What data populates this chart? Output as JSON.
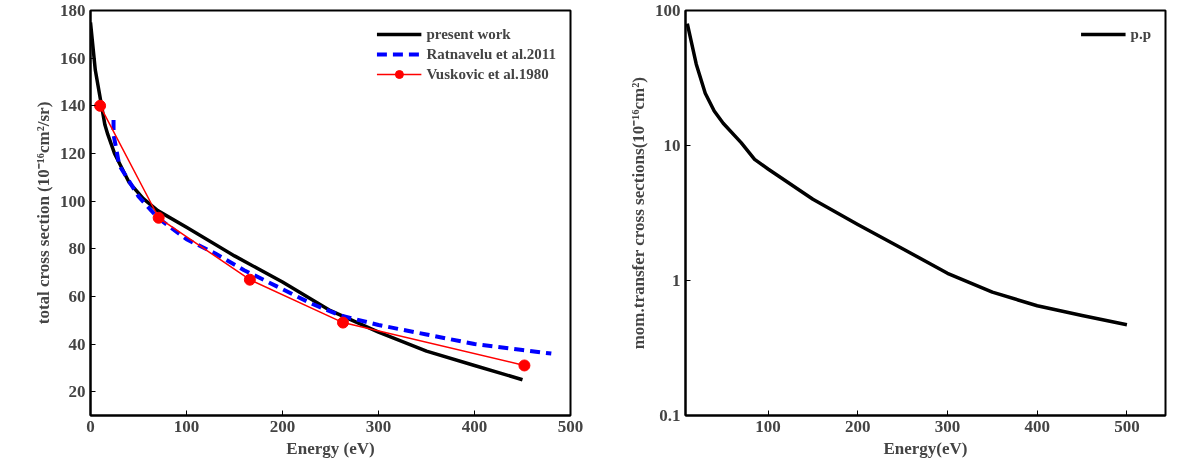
{
  "chart_data": [
    {
      "type": "line",
      "xlabel": "Energy (eV)",
      "ylabel": "total cross section (10⁻¹⁶cm²/sr)",
      "xlim": [
        0,
        500
      ],
      "xticks": [
        0,
        100,
        200,
        300,
        400,
        500
      ],
      "ylim": [
        10,
        180
      ],
      "yticks": [
        20,
        40,
        60,
        80,
        100,
        120,
        140,
        160,
        180
      ],
      "grid": false,
      "legend": "top right",
      "series": [
        {
          "name": "present work",
          "color": "#000000",
          "line_style": "solid",
          "marker": "none",
          "x": [
            0,
            5,
            15,
            18,
            25,
            40,
            55,
            70,
            100,
            150,
            200,
            250,
            300,
            350,
            400,
            450
          ],
          "values": [
            175,
            155,
            132,
            128,
            120,
            108,
            101,
            96,
            89,
            77,
            66,
            54,
            45,
            37,
            31,
            25
          ]
        },
        {
          "name": "Ratnavelu et al.2011",
          "color": "#0000ff",
          "line_style": "dashed",
          "marker": "none",
          "x": [
            24,
            24,
            30,
            50,
            70,
            100,
            130,
            160,
            200,
            230,
            260,
            300,
            350,
            400,
            450,
            480
          ],
          "values": [
            134,
            128,
            115,
            102,
            93,
            84,
            78,
            71,
            63,
            57,
            52,
            48,
            44,
            40,
            37.5,
            36
          ]
        },
        {
          "name": "Vuskovic et al.1980",
          "color": "#ff0000",
          "line_style": "solid",
          "marker": "circle",
          "x": [
            10,
            71,
            166,
            263,
            452
          ],
          "values": [
            140,
            93,
            67,
            49,
            31
          ]
        }
      ]
    },
    {
      "type": "line",
      "xlabel": "Energy(eV)",
      "ylabel": "mom.transfer cross sections(10⁻¹⁶cm²)",
      "log": "y",
      "xlim": [
        8,
        543
      ],
      "xticks": [
        100,
        200,
        300,
        400,
        500
      ],
      "ylim": [
        0.1,
        100
      ],
      "yticks": [
        0.1,
        1,
        10,
        100
      ],
      "grid": false,
      "legend": "top right",
      "series": [
        {
          "name": "p.p",
          "color": "#000000",
          "line_style": "solid",
          "marker": "none",
          "x": [
            10,
            20,
            30,
            40,
            50,
            70,
            85,
            100,
            150,
            200,
            250,
            300,
            350,
            400,
            450,
            500
          ],
          "values": [
            80,
            40,
            24.4,
            18,
            14.6,
            10.5,
            7.9,
            6.7,
            4.0,
            2.6,
            1.72,
            1.13,
            0.82,
            0.65,
            0.55,
            0.47
          ]
        }
      ]
    }
  ]
}
